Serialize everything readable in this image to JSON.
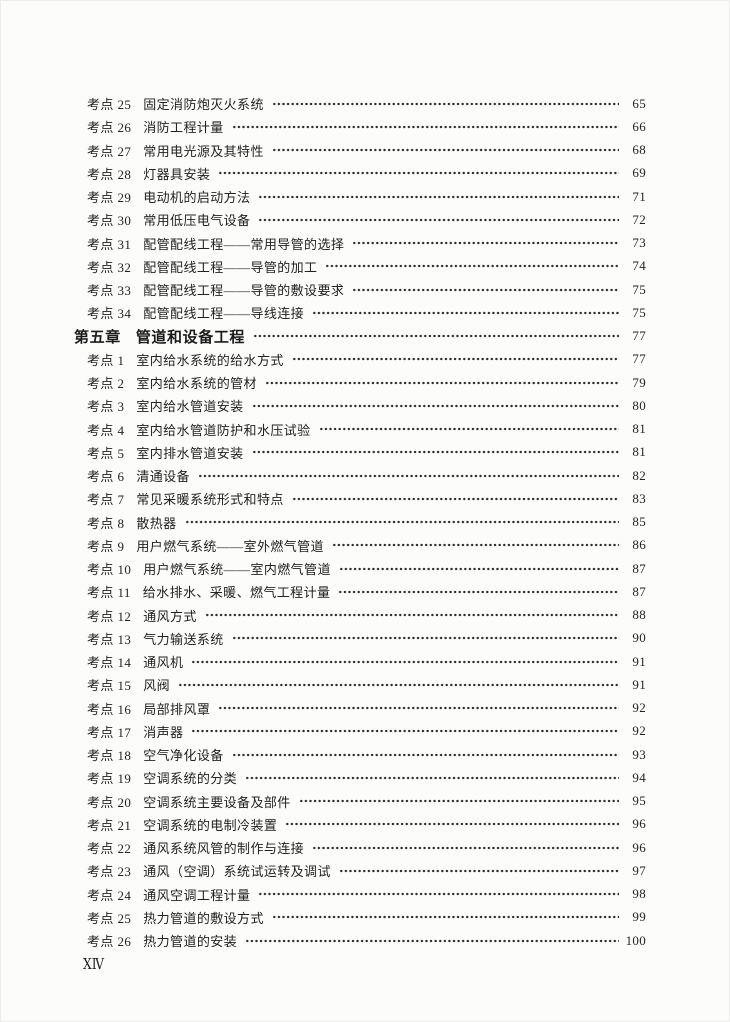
{
  "page": {
    "footer_page_number": "ⅩⅣ"
  },
  "colors": {
    "background": "#fcfcfb",
    "text": "#222222",
    "dot_leader": "#2e2e2e"
  },
  "toc": {
    "rows": [
      {
        "type": "item",
        "label": "考点 25",
        "title": "固定消防炮灭火系统",
        "page": "65"
      },
      {
        "type": "item",
        "label": "考点 26",
        "title": "消防工程计量",
        "page": "66"
      },
      {
        "type": "item",
        "label": "考点 27",
        "title": "常用电光源及其特性",
        "page": "68"
      },
      {
        "type": "item",
        "label": "考点 28",
        "title": "灯器具安装",
        "page": "69"
      },
      {
        "type": "item",
        "label": "考点 29",
        "title": "电动机的启动方法",
        "page": "71"
      },
      {
        "type": "item",
        "label": "考点 30",
        "title": "常用低压电气设备",
        "page": "72"
      },
      {
        "type": "item",
        "label": "考点 31",
        "title": "配管配线工程——常用导管的选择",
        "page": "73"
      },
      {
        "type": "item",
        "label": "考点 32",
        "title": "配管配线工程——导管的加工",
        "page": "74"
      },
      {
        "type": "item",
        "label": "考点 33",
        "title": "配管配线工程——导管的敷设要求",
        "page": "75"
      },
      {
        "type": "item",
        "label": "考点 34",
        "title": "配管配线工程——导线连接",
        "page": "75"
      },
      {
        "type": "chapter",
        "label": "第五章",
        "title": "管道和设备工程",
        "page": "77"
      },
      {
        "type": "item",
        "label": "考点 1",
        "title": "室内给水系统的给水方式",
        "page": "77"
      },
      {
        "type": "item",
        "label": "考点 2",
        "title": "室内给水系统的管材",
        "page": "79"
      },
      {
        "type": "item",
        "label": "考点 3",
        "title": "室内给水管道安装",
        "page": "80"
      },
      {
        "type": "item",
        "label": "考点 4",
        "title": "室内给水管道防护和水压试验",
        "page": "81"
      },
      {
        "type": "item",
        "label": "考点 5",
        "title": "室内排水管道安装",
        "page": "81"
      },
      {
        "type": "item",
        "label": "考点 6",
        "title": "清通设备",
        "page": "82"
      },
      {
        "type": "item",
        "label": "考点 7",
        "title": "常见采暖系统形式和特点",
        "page": "83"
      },
      {
        "type": "item",
        "label": "考点 8",
        "title": "散热器",
        "page": "85"
      },
      {
        "type": "item",
        "label": "考点 9",
        "title": "用户燃气系统——室外燃气管道",
        "page": "86"
      },
      {
        "type": "item",
        "label": "考点 10",
        "title": "用户燃气系统——室内燃气管道",
        "page": "87"
      },
      {
        "type": "item",
        "label": "考点 11",
        "title": "给水排水、采暖、燃气工程计量",
        "page": "87"
      },
      {
        "type": "item",
        "label": "考点 12",
        "title": "通风方式",
        "page": "88"
      },
      {
        "type": "item",
        "label": "考点 13",
        "title": "气力输送系统",
        "page": "90"
      },
      {
        "type": "item",
        "label": "考点 14",
        "title": "通风机",
        "page": "91"
      },
      {
        "type": "item",
        "label": "考点 15",
        "title": "风阀",
        "page": "91"
      },
      {
        "type": "item",
        "label": "考点 16",
        "title": "局部排风罩",
        "page": "92"
      },
      {
        "type": "item",
        "label": "考点 17",
        "title": "消声器",
        "page": "92"
      },
      {
        "type": "item",
        "label": "考点 18",
        "title": "空气净化设备",
        "page": "93"
      },
      {
        "type": "item",
        "label": "考点 19",
        "title": "空调系统的分类",
        "page": "94"
      },
      {
        "type": "item",
        "label": "考点 20",
        "title": "空调系统主要设备及部件",
        "page": "95"
      },
      {
        "type": "item",
        "label": "考点 21",
        "title": "空调系统的电制冷装置",
        "page": "96"
      },
      {
        "type": "item",
        "label": "考点 22",
        "title": "通风系统风管的制作与连接",
        "page": "96"
      },
      {
        "type": "item",
        "label": "考点 23",
        "title": "通风（空调）系统试运转及调试",
        "page": "97"
      },
      {
        "type": "item",
        "label": "考点 24",
        "title": "通风空调工程计量",
        "page": "98"
      },
      {
        "type": "item",
        "label": "考点 25",
        "title": "热力管道的敷设方式",
        "page": "99"
      },
      {
        "type": "item",
        "label": "考点 26",
        "title": "热力管道的安装",
        "page": "100"
      }
    ]
  }
}
